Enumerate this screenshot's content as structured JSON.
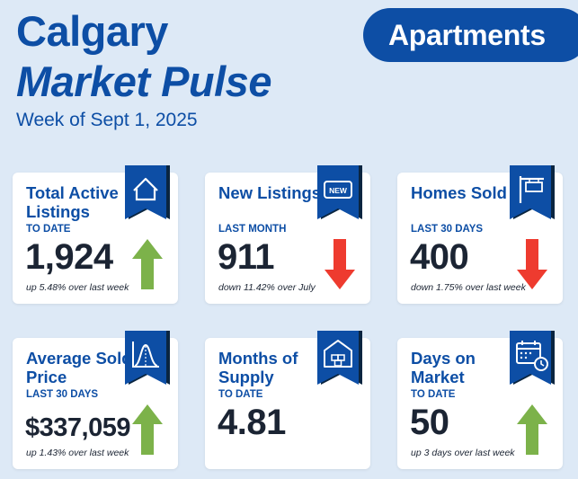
{
  "header": {
    "title_line1": "Calgary",
    "title_line2": "Market Pulse",
    "subtitle": "Week of Sept 1, 2025",
    "badge": "Apartments"
  },
  "colors": {
    "background": "#dde9f6",
    "brand_blue": "#0d4ea5",
    "ribbon_shadow": "#0a2540",
    "up_arrow": "#7cb24a",
    "down_arrow": "#ee3b2f",
    "value_text": "#1b2433"
  },
  "cards": [
    {
      "title": "Total Active Listings",
      "sub": "TO DATE",
      "value": "1,924",
      "note": "up 5.48% over last week",
      "trend": "up",
      "icon": "house-icon"
    },
    {
      "title": "New Listings",
      "sub": "LAST MONTH",
      "value": "911",
      "note": "down 11.42% over July",
      "trend": "down",
      "icon": "new-tag-icon",
      "icon_text": "NEW"
    },
    {
      "title": "Homes Sold",
      "sub": "LAST 30 DAYS",
      "value": "400",
      "note": "down 1.75% over last week",
      "trend": "down",
      "icon": "sign-post-icon"
    },
    {
      "title": "Average Sold Price",
      "sub": "LAST 30 DAYS",
      "value": "$337,059",
      "note": "up 1.43% over last week",
      "trend": "up",
      "icon": "bell-curve-chart-icon"
    },
    {
      "title": "Months of Supply",
      "sub": "TO DATE",
      "value": "4.81",
      "note": "",
      "trend": "none",
      "icon": "warehouse-icon"
    },
    {
      "title": "Days on Market",
      "sub": "TO DATE",
      "value": "50",
      "note": "up 3 days over last week",
      "trend": "up",
      "icon": "calendar-clock-icon"
    }
  ]
}
